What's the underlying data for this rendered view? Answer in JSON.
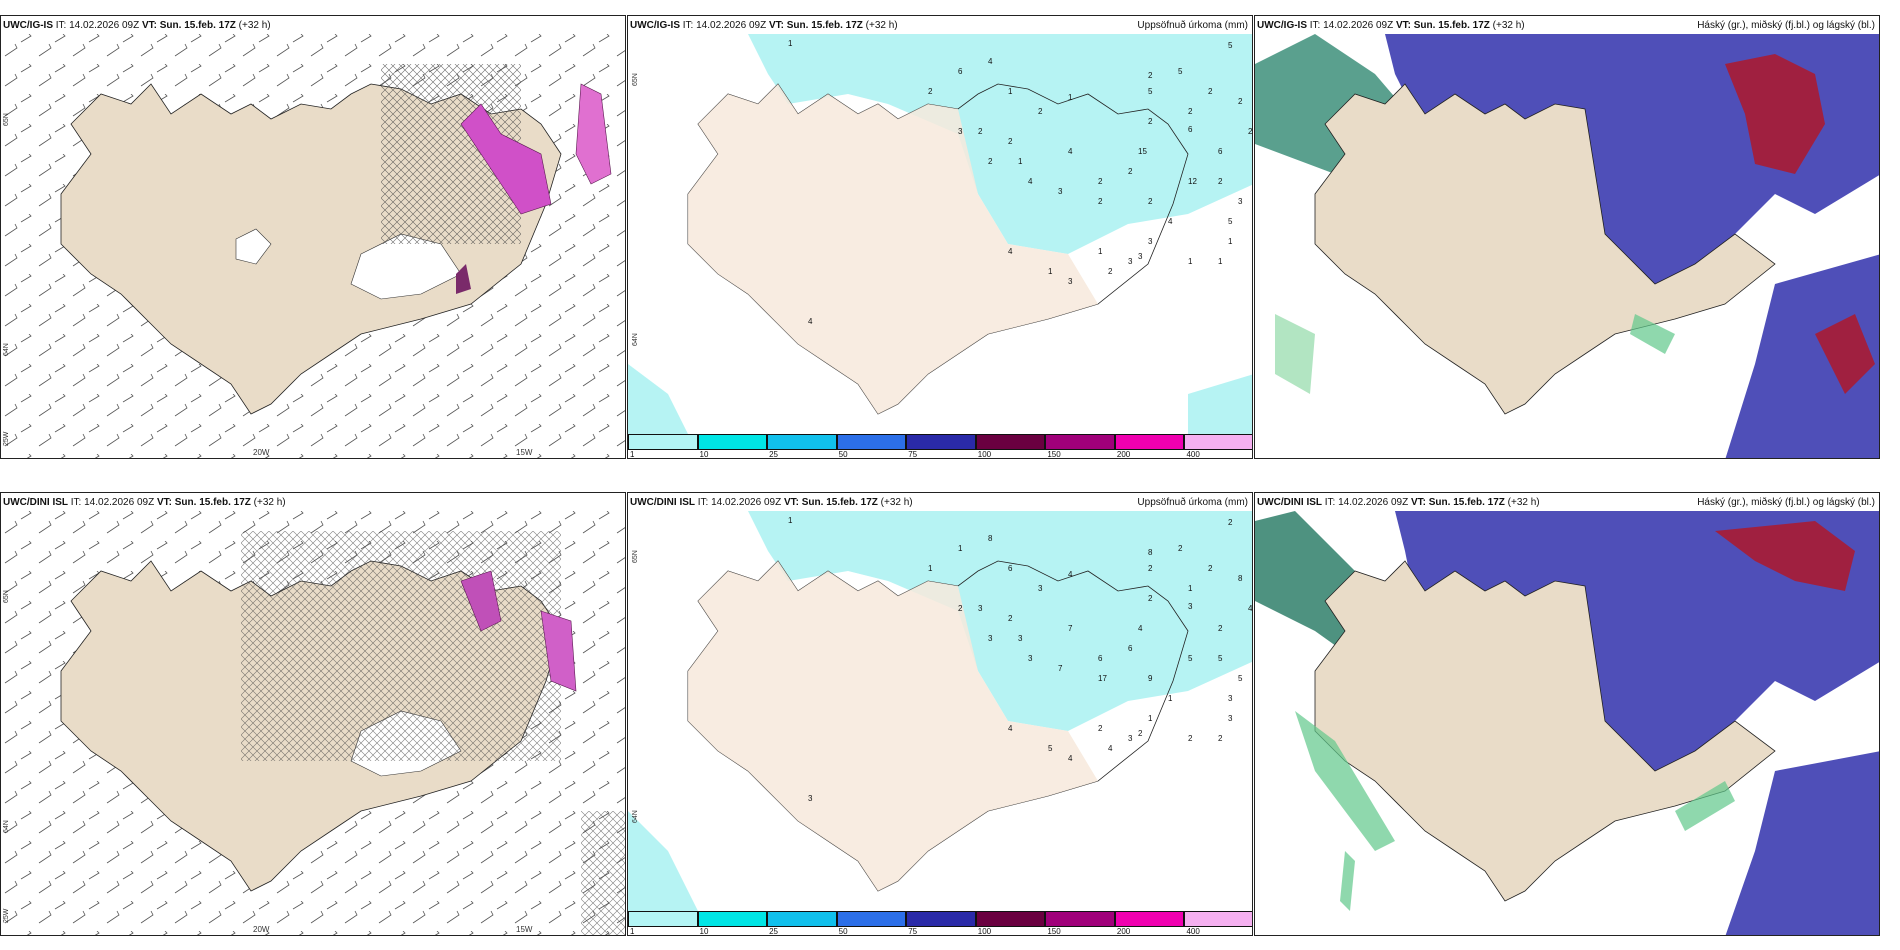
{
  "panels": [
    {
      "model_label": "UWC/IG-IS",
      "it_label": "IT:",
      "it_value": "14.02.2026 09Z",
      "vt_label": "VT:",
      "vt_value": "Sun. 15.feb. 17Z",
      "lead": "(+32 h)",
      "product_title": "",
      "lat_labels": [
        "65N",
        "64N",
        "25W"
      ],
      "lon_labels": [
        "20W",
        "15W"
      ]
    },
    {
      "model_label": "UWC/IG-IS",
      "it_label": "IT:",
      "it_value": "14.02.2026 09Z",
      "vt_label": "VT:",
      "vt_value": "Sun. 15.feb. 17Z",
      "lead": "(+32 h)",
      "product_title": "Uppsöfnuð úrkoma (mm)",
      "lat_labels": [
        "65N",
        "64N"
      ],
      "precip_values": [
        "1",
        "6",
        "4",
        "2",
        "1",
        "2",
        "1",
        "2",
        "2",
        "5",
        "5",
        "5",
        "2",
        "2",
        "2",
        "4",
        "2",
        "2",
        "6",
        "6",
        "2",
        "1",
        "2",
        "3",
        "2",
        "2",
        "4",
        "3",
        "2",
        "2",
        "15",
        "12",
        "2",
        "5",
        "4",
        "3",
        "3",
        "2",
        "1",
        "3",
        "1",
        "1",
        "3",
        "1",
        "4",
        "1",
        "3",
        "4"
      ]
    },
    {
      "model_label": "UWC/IG-IS",
      "it_label": "IT:",
      "it_value": "14.02.2026 09Z",
      "vt_label": "VT:",
      "vt_value": "Sun. 15.feb. 17Z",
      "lead": "(+32 h)",
      "product_title": "Háský (gr.), miðský (fj.bl.) og lágský (bl.)"
    },
    {
      "model_label": "UWC/DINI ISL",
      "it_label": "IT:",
      "it_value": "14.02.2026 09Z",
      "vt_label": "VT:",
      "vt_value": "Sun. 15.feb. 17Z",
      "lead": "(+32 h)",
      "product_title": "",
      "lat_labels": [
        "65N",
        "64N",
        "25W"
      ],
      "lon_labels": [
        "20W",
        "15W"
      ]
    },
    {
      "model_label": "UWC/DINI ISL",
      "it_label": "IT:",
      "it_value": "14.02.2026 09Z",
      "vt_label": "VT:",
      "vt_value": "Sun. 15.feb. 17Z",
      "lead": "(+32 h)",
      "product_title": "Uppsöfnuð úrkoma (mm)",
      "lat_labels": [
        "65N",
        "64N"
      ],
      "precip_values": [
        "1",
        "1",
        "8",
        "8",
        "6",
        "3",
        "4",
        "2",
        "1",
        "2",
        "2",
        "2",
        "2",
        "8",
        "4",
        "7",
        "6",
        "6",
        "2",
        "3",
        "2",
        "3",
        "1",
        "2",
        "3",
        "3",
        "3",
        "7",
        "17",
        "9",
        "4",
        "5",
        "5",
        "3",
        "1",
        "1",
        "2",
        "4",
        "2",
        "3",
        "2",
        "3",
        "5",
        "2",
        "4",
        "5",
        "4",
        "3"
      ]
    },
    {
      "model_label": "UWC/DINI ISL",
      "it_label": "IT:",
      "it_value": "14.02.2026 09Z",
      "vt_label": "VT:",
      "vt_value": "Sun. 15.feb. 17Z",
      "lead": "(+32 h)",
      "product_title": "Háský (gr.), miðský (fj.bl.) og lágský (bl.)"
    }
  ],
  "colorbar": {
    "ticks": [
      "1",
      "10",
      "25",
      "50",
      "75",
      "100",
      "150",
      "200",
      "400"
    ],
    "colors": [
      "#b3f5f5",
      "#00e5e5",
      "#11c0ec",
      "#2c6fe8",
      "#2a2aa8",
      "#6a0040",
      "#a0007a",
      "#f000b0",
      "#f5b0f0"
    ]
  },
  "colors": {
    "land": "#e9dcc8",
    "land_precip": "#f7e9dc",
    "precip_light": "#b6f3f3",
    "high_cloud": "#3d8f7a",
    "mid_cloud": "#a02040",
    "low_cloud": "#4f4fb8",
    "snow_pink": "#d050c8"
  }
}
